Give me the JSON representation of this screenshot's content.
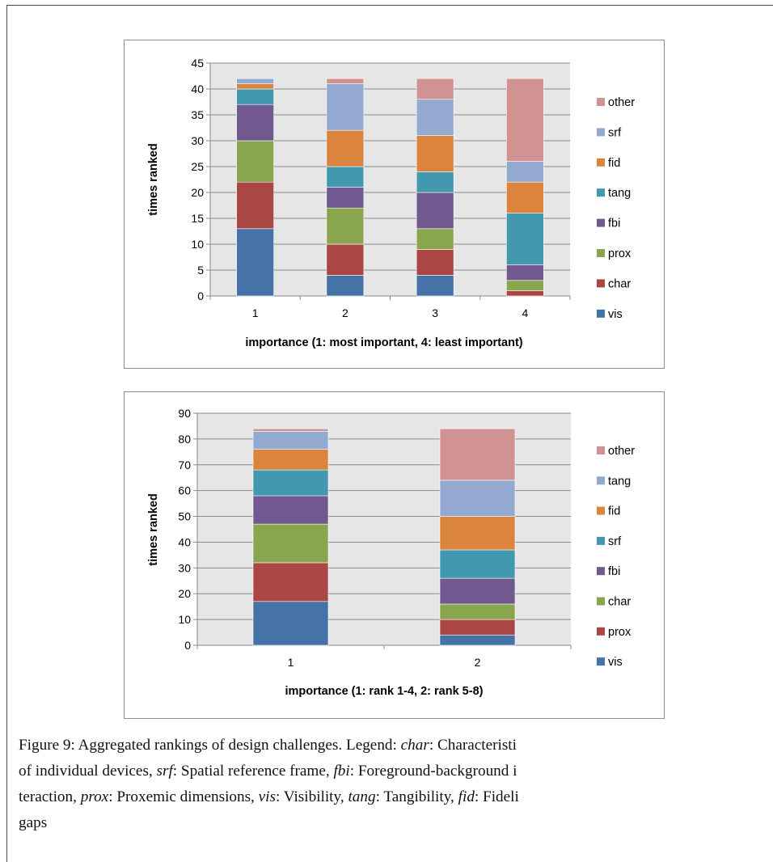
{
  "chart_data": [
    {
      "type": "bar",
      "stacked": true,
      "categories": [
        "1",
        "2",
        "3",
        "4"
      ],
      "xlabel": "importance (1: most important, 4: least important)",
      "ylabel": "times ranked",
      "ylim": [
        0,
        45
      ],
      "ytick_step": 5,
      "grid": true,
      "legend_position": "right",
      "series": [
        {
          "name": "vis",
          "color": "#4573a7",
          "values": [
            13,
            4,
            4,
            0
          ]
        },
        {
          "name": "char",
          "color": "#aa4643",
          "values": [
            9,
            6,
            5,
            1
          ]
        },
        {
          "name": "prox",
          "color": "#89a54e",
          "values": [
            8,
            7,
            4,
            2
          ]
        },
        {
          "name": "fbi",
          "color": "#71588f",
          "values": [
            7,
            4,
            7,
            3
          ]
        },
        {
          "name": "tang",
          "color": "#4198af",
          "values": [
            3,
            4,
            4,
            10
          ]
        },
        {
          "name": "fid",
          "color": "#db843d",
          "values": [
            1,
            7,
            7,
            6
          ]
        },
        {
          "name": "srf",
          "color": "#93a9cf",
          "values": [
            1,
            9,
            7,
            4
          ]
        },
        {
          "name": "other",
          "color": "#d19392",
          "values": [
            0,
            1,
            4,
            16
          ]
        }
      ]
    },
    {
      "type": "bar",
      "stacked": true,
      "categories": [
        "1",
        "2"
      ],
      "xlabel": "importance (1: rank 1-4, 2: rank 5-8)",
      "ylabel": "times ranked",
      "ylim": [
        0,
        90
      ],
      "ytick_step": 10,
      "grid": true,
      "legend_position": "right",
      "series": [
        {
          "name": "vis",
          "color": "#4573a7",
          "values": [
            17,
            4
          ]
        },
        {
          "name": "prox",
          "color": "#aa4643",
          "values": [
            15,
            6
          ]
        },
        {
          "name": "char",
          "color": "#89a54e",
          "values": [
            15,
            6
          ]
        },
        {
          "name": "fbi",
          "color": "#71588f",
          "values": [
            11,
            10
          ]
        },
        {
          "name": "srf",
          "color": "#4198af",
          "values": [
            10,
            11
          ]
        },
        {
          "name": "fid",
          "color": "#db843d",
          "values": [
            8,
            13
          ]
        },
        {
          "name": "tang",
          "color": "#93a9cf",
          "values": [
            7,
            14
          ]
        },
        {
          "name": "other",
          "color": "#d19392",
          "values": [
            1,
            20
          ]
        }
      ]
    }
  ],
  "caption": {
    "lines": [
      [
        {
          "t": "Figure 9: Aggregated rankings of design challenges. Legend: "
        },
        {
          "t": "char",
          "em": true
        },
        {
          "t": ": Characteristi"
        }
      ],
      [
        {
          "t": "of individual devices, "
        },
        {
          "t": "srf",
          "em": true
        },
        {
          "t": ": Spatial reference frame, "
        },
        {
          "t": "fbi",
          "em": true
        },
        {
          "t": ": Foreground-background i"
        }
      ],
      [
        {
          "t": "teraction, "
        },
        {
          "t": "prox",
          "em": true
        },
        {
          "t": ": Proxemic dimensions, "
        },
        {
          "t": "vis",
          "em": true
        },
        {
          "t": ": Visibility, "
        },
        {
          "t": "tang",
          "em": true
        },
        {
          "t": ": Tangibility, "
        },
        {
          "t": "fid",
          "em": true
        },
        {
          "t": ": Fideli"
        }
      ],
      [
        {
          "t": "gaps"
        }
      ]
    ]
  }
}
